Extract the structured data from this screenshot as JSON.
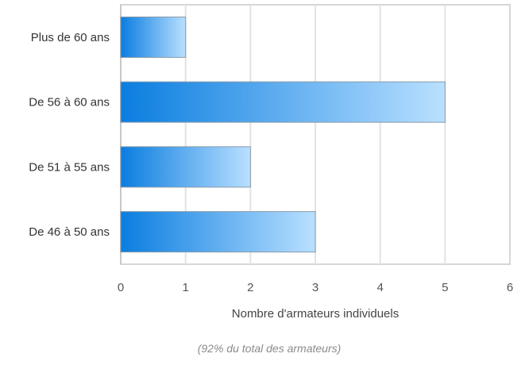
{
  "chart_data": {
    "type": "bar",
    "orientation": "horizontal",
    "categories": [
      "Plus de 60 ans",
      "De 56 à 60 ans",
      "De 51 à 55 ans",
      "De 46 à 50 ans"
    ],
    "values": [
      1,
      5,
      2,
      3
    ],
    "xlabel": "Nombre d'armateurs individuels",
    "ylabel": "",
    "xlim": [
      0,
      6
    ],
    "x_ticks": [
      "0",
      "1",
      "2",
      "3",
      "4",
      "5",
      "6"
    ],
    "grid": "vertical",
    "legend": "none",
    "footnote": "(92% du total des armateurs)",
    "colors": {
      "bar_start": "#0a7de0",
      "bar_end": "#b9e0ff",
      "bar_stroke": "#8a9aa8",
      "grid": "#e3e3e3",
      "frame": "#d6d6d6"
    }
  }
}
